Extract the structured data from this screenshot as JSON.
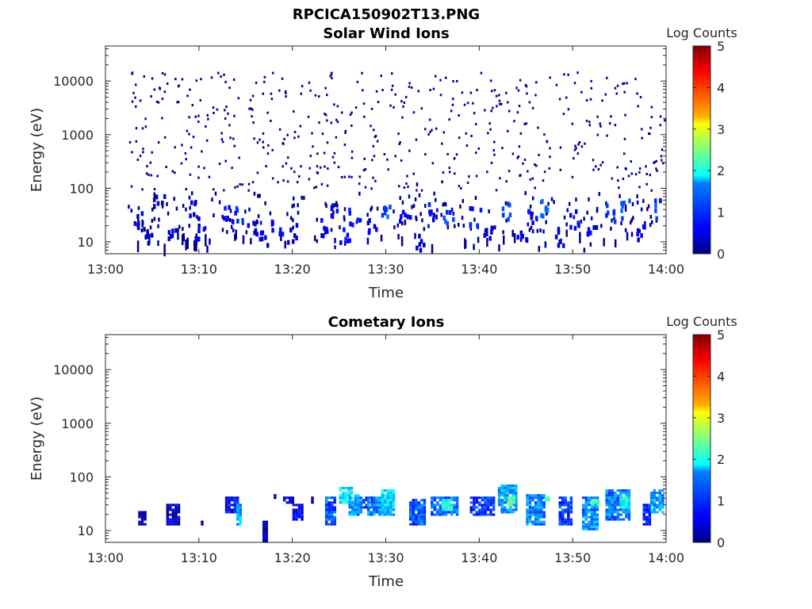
{
  "figure_title": "RPCICA150902T13.PNG",
  "chart_data": [
    {
      "type": "heatmap",
      "title": "Solar Wind Ions",
      "xlabel": "Time",
      "ylabel": "Energy (eV)",
      "x_ticks": [
        "13:00",
        "13:10",
        "13:20",
        "13:30",
        "13:40",
        "13:50",
        "14:00"
      ],
      "y_ticks": [
        "10",
        "100",
        "1000",
        "10000"
      ],
      "y_scale": "log",
      "ylim": [
        6,
        45000
      ],
      "xlim_minutes": [
        0,
        60
      ],
      "colorbar": {
        "label": "Log Counts",
        "ticks": [
          "0",
          "1",
          "2",
          "3",
          "4",
          "5"
        ],
        "range": [
          0,
          5
        ],
        "colormap": "jet"
      },
      "seed": 7,
      "n_scatter": 520,
      "low_energy_bursts": [
        {
          "t": 3.6,
          "e": 25,
          "v": 0.4
        },
        {
          "t": 4.3,
          "e": 14,
          "v": 0.3
        },
        {
          "t": 5.6,
          "e": 50,
          "v": 0.3
        },
        {
          "t": 7.0,
          "e": 15,
          "v": 0.4
        },
        {
          "t": 9.3,
          "e": 40,
          "v": 0.3
        },
        {
          "t": 10.0,
          "e": 14,
          "v": 0.5
        },
        {
          "t": 13.0,
          "e": 30,
          "v": 0.6
        },
        {
          "t": 14.0,
          "e": 35,
          "v": 0.8
        },
        {
          "t": 15.5,
          "e": 20,
          "v": 0.4
        },
        {
          "t": 17.0,
          "e": 10,
          "v": 0.5
        },
        {
          "t": 18.3,
          "e": 20,
          "v": 0.6
        },
        {
          "t": 20.0,
          "e": 14,
          "v": 0.4
        },
        {
          "t": 23.5,
          "e": 18,
          "v": 0.5
        },
        {
          "t": 24.5,
          "e": 40,
          "v": 0.5
        },
        {
          "t": 25.5,
          "e": 12,
          "v": 0.6
        },
        {
          "t": 26.5,
          "e": 30,
          "v": 0.8
        },
        {
          "t": 28.5,
          "e": 22,
          "v": 0.5
        },
        {
          "t": 30.0,
          "e": 35,
          "v": 1.0
        },
        {
          "t": 32.0,
          "e": 25,
          "v": 0.5
        },
        {
          "t": 33.5,
          "e": 10,
          "v": 0.4
        },
        {
          "t": 34.5,
          "e": 38,
          "v": 0.6
        },
        {
          "t": 36.5,
          "e": 30,
          "v": 0.9
        },
        {
          "t": 39.5,
          "e": 30,
          "v": 0.7
        },
        {
          "t": 41.0,
          "e": 14,
          "v": 0.4
        },
        {
          "t": 43.0,
          "e": 35,
          "v": 0.9
        },
        {
          "t": 44.5,
          "e": 12,
          "v": 0.5
        },
        {
          "t": 45.5,
          "e": 30,
          "v": 0.6
        },
        {
          "t": 47.0,
          "e": 40,
          "v": 1.2
        },
        {
          "t": 48.5,
          "e": 12,
          "v": 0.5
        },
        {
          "t": 50.0,
          "e": 25,
          "v": 0.6
        },
        {
          "t": 52.0,
          "e": 20,
          "v": 0.5
        },
        {
          "t": 54.0,
          "e": 35,
          "v": 0.8
        },
        {
          "t": 55.5,
          "e": 40,
          "v": 1.0
        },
        {
          "t": 57.0,
          "e": 15,
          "v": 0.5
        },
        {
          "t": 59.0,
          "e": 40,
          "v": 0.9
        }
      ]
    },
    {
      "type": "heatmap",
      "title": "Cometary Ions",
      "xlabel": "Time",
      "ylabel": "Energy (eV)",
      "x_ticks": [
        "13:00",
        "13:10",
        "13:20",
        "13:30",
        "13:40",
        "13:50",
        "14:00"
      ],
      "y_ticks": [
        "10",
        "100",
        "1000",
        "10000"
      ],
      "y_scale": "log",
      "ylim": [
        6,
        45000
      ],
      "xlim_minutes": [
        0,
        60
      ],
      "colorbar": {
        "label": "Log Counts",
        "ticks": [
          "0",
          "1",
          "2",
          "3",
          "4",
          "5"
        ],
        "range": [
          0,
          5
        ],
        "colormap": "jet"
      },
      "blobs": [
        {
          "t0": 3.5,
          "t1": 4.3,
          "e0": 12,
          "e1": 22,
          "v": 0.2
        },
        {
          "t0": 6.5,
          "t1": 7.8,
          "e0": 12,
          "e1": 30,
          "v": 0.3
        },
        {
          "t0": 10.2,
          "t1": 10.5,
          "e0": 12,
          "e1": 15,
          "v": 0.2
        },
        {
          "t0": 12.8,
          "t1": 14.2,
          "e0": 20,
          "e1": 40,
          "v": 0.6
        },
        {
          "t0": 14.0,
          "t1": 14.5,
          "e0": 12,
          "e1": 30,
          "v": 1.5
        },
        {
          "t0": 16.8,
          "t1": 17.2,
          "e0": 6,
          "e1": 15,
          "v": 0.2
        },
        {
          "t0": 18.0,
          "t1": 18.3,
          "e0": 35,
          "e1": 45,
          "v": 0.3
        },
        {
          "t0": 19.0,
          "t1": 20.2,
          "e0": 30,
          "e1": 40,
          "v": 0.4
        },
        {
          "t0": 20.0,
          "t1": 21.0,
          "e0": 15,
          "e1": 30,
          "v": 0.5
        },
        {
          "t0": 22.0,
          "t1": 22.3,
          "e0": 30,
          "e1": 40,
          "v": 0.2
        },
        {
          "t0": 23.5,
          "t1": 24.7,
          "e0": 12,
          "e1": 40,
          "v": 1.0
        },
        {
          "t0": 25.0,
          "t1": 26.3,
          "e0": 30,
          "e1": 65,
          "v": 1.8
        },
        {
          "t0": 26.0,
          "t1": 27.5,
          "e0": 18,
          "e1": 45,
          "v": 1.4
        },
        {
          "t0": 27.5,
          "t1": 28.5,
          "e0": 25,
          "e1": 40,
          "v": 0.8
        },
        {
          "t0": 28.0,
          "t1": 31.0,
          "e0": 18,
          "e1": 40,
          "v": 1.3
        },
        {
          "t0": 29.5,
          "t1": 30.8,
          "e0": 25,
          "e1": 55,
          "v": 1.8
        },
        {
          "t0": 32.5,
          "t1": 34.0,
          "e0": 12,
          "e1": 35,
          "v": 1.0
        },
        {
          "t0": 34.8,
          "t1": 37.5,
          "e0": 18,
          "e1": 40,
          "v": 1.1
        },
        {
          "t0": 36.0,
          "t1": 37.0,
          "e0": 22,
          "e1": 35,
          "v": 2.0
        },
        {
          "t0": 39.0,
          "t1": 41.5,
          "e0": 18,
          "e1": 40,
          "v": 0.9
        },
        {
          "t0": 42.0,
          "t1": 44.0,
          "e0": 20,
          "e1": 75,
          "v": 1.4
        },
        {
          "t0": 43.0,
          "t1": 43.8,
          "e0": 28,
          "e1": 40,
          "v": 2.2
        },
        {
          "t0": 45.0,
          "t1": 46.8,
          "e0": 12,
          "e1": 45,
          "v": 1.2
        },
        {
          "t0": 47.0,
          "t1": 47.5,
          "e0": 30,
          "e1": 40,
          "v": 2.4
        },
        {
          "t0": 48.5,
          "t1": 49.8,
          "e0": 12,
          "e1": 40,
          "v": 0.9
        },
        {
          "t0": 51.0,
          "t1": 52.5,
          "e0": 10,
          "e1": 40,
          "v": 1.3
        },
        {
          "t0": 52.0,
          "t1": 52.8,
          "e0": 28,
          "e1": 38,
          "v": 2.3
        },
        {
          "t0": 53.5,
          "t1": 56.0,
          "e0": 15,
          "e1": 55,
          "v": 1.2
        },
        {
          "t0": 55.0,
          "t1": 56.0,
          "e0": 25,
          "e1": 40,
          "v": 2.0
        },
        {
          "t0": 57.5,
          "t1": 58.3,
          "e0": 12,
          "e1": 30,
          "v": 0.8
        },
        {
          "t0": 58.3,
          "t1": 59.5,
          "e0": 20,
          "e1": 55,
          "v": 1.4
        }
      ]
    }
  ]
}
